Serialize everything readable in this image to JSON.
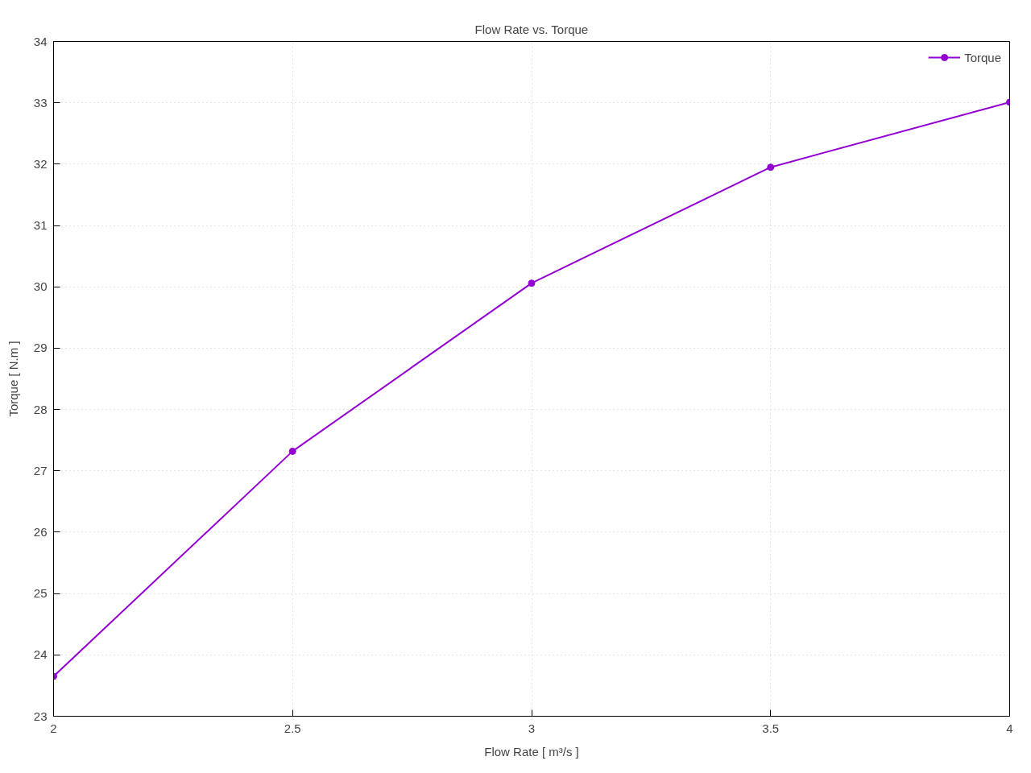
{
  "chart_data": {
    "type": "line",
    "title": "Flow Rate vs. Torque",
    "xlabel": "Flow Rate [ m³/s ]",
    "ylabel": "Torque [ N.m ]",
    "x": [
      2,
      2.5,
      3,
      3.5,
      4
    ],
    "series": [
      {
        "name": "Torque",
        "color": "#9400d3",
        "values": [
          23.65,
          27.32,
          30.06,
          31.95,
          33.01
        ]
      }
    ],
    "xlim": [
      2,
      4
    ],
    "ylim": [
      23,
      34
    ],
    "xticks": [
      2,
      2.5,
      3,
      3.5,
      4
    ],
    "yticks": [
      23,
      24,
      25,
      26,
      27,
      28,
      29,
      30,
      31,
      32,
      33,
      34
    ],
    "grid": true,
    "legend": "top right",
    "marker": "circle",
    "line_style": "solid"
  }
}
